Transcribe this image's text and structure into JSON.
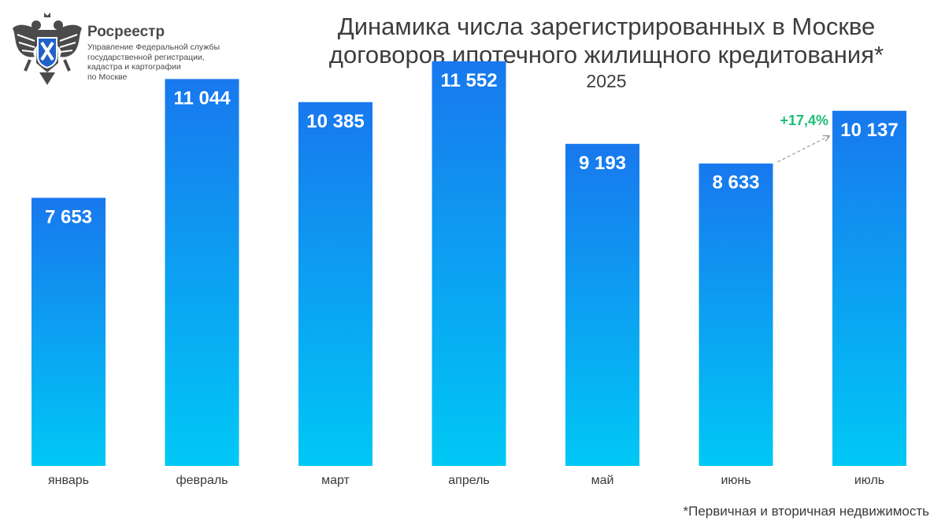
{
  "header": {
    "org_name": "Росреестр",
    "org_desc": [
      "Управление Федеральной службы",
      "государственной регистрации,",
      "кадастра и картографии",
      "по Москве"
    ],
    "logo_icon": "double-headed-eagle-emblem-icon"
  },
  "chart_data": {
    "type": "bar",
    "title_lines": [
      "Динамика числа зарегистрированных в Москве",
      "договоров ипотечного жилищного кредитования*"
    ],
    "subtitle": "2025",
    "categories": [
      "январь",
      "февраль",
      "март",
      "апрель",
      "май",
      "июнь",
      "июль"
    ],
    "values": [
      7653,
      11044,
      10385,
      11552,
      9193,
      8633,
      10137
    ],
    "value_labels": [
      "7 653",
      "11 044",
      "10 385",
      "11 552",
      "9 193",
      "8 633",
      "10 137"
    ],
    "ylim": [
      0,
      13300
    ],
    "grid": false,
    "legend": "none",
    "annotation": {
      "text": "+17,4%",
      "from_category": "июнь",
      "to_category": "июль",
      "color": "#1dbf73"
    },
    "bar_gradient": [
      "#1878ee",
      "#00c8f5"
    ]
  },
  "footnote": "*Первичная и вторичная недвижимость"
}
